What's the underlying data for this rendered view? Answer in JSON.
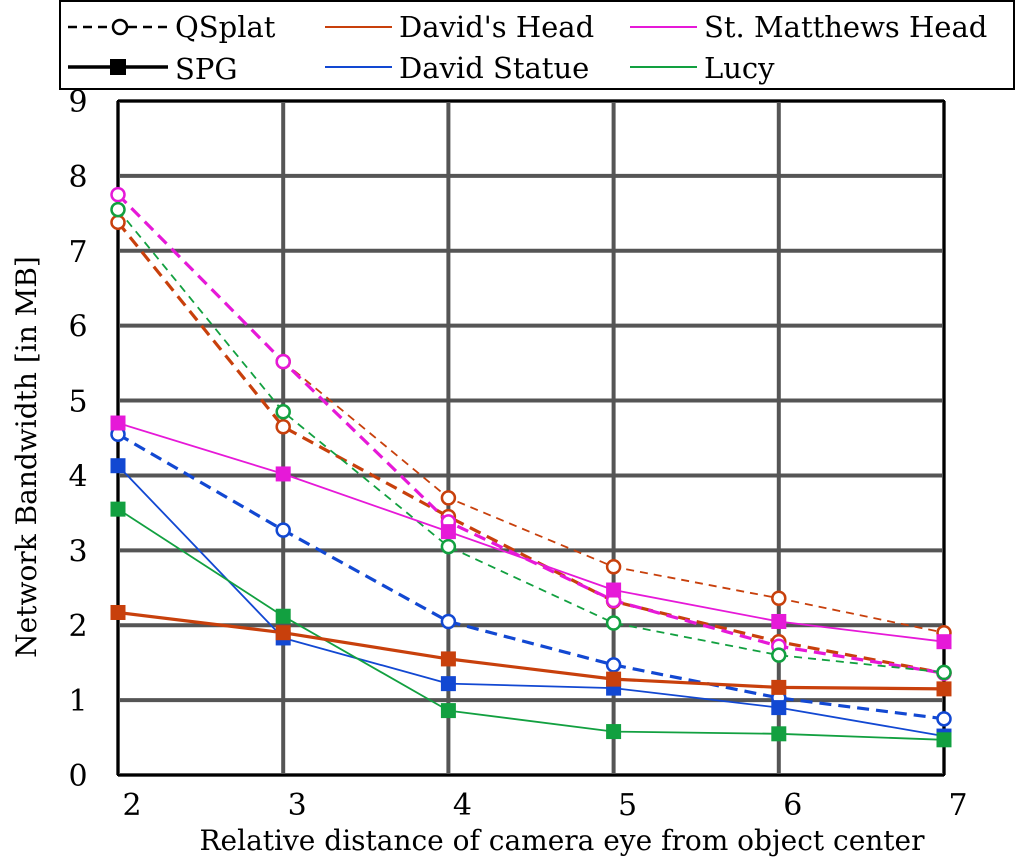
{
  "chart_data": {
    "type": "line",
    "title": "",
    "xlabel": "Relative distance of camera eye from object center",
    "ylabel": "Network Bandwidth [in MB]",
    "xlim": [
      2,
      7
    ],
    "ylim": [
      0,
      9
    ],
    "x_ticks": [
      2,
      3,
      4,
      5,
      6,
      7
    ],
    "y_ticks": [
      0,
      1,
      2,
      3,
      4,
      5,
      6,
      7,
      8,
      9
    ],
    "grid": true,
    "legend_position": "top",
    "legend": {
      "methods": [
        {
          "name": "QSplat",
          "line_style": "dashed",
          "marker": "open-circle"
        },
        {
          "name": "SPG",
          "line_style": "solid",
          "marker": "filled-square"
        }
      ],
      "models": [
        {
          "name": "David's Head",
          "color": "#c8400c"
        },
        {
          "name": "St. Matthews Head",
          "color": "#e619d8"
        },
        {
          "name": "David Statue",
          "color": "#1248d2"
        },
        {
          "name": "Lucy",
          "color": "#12a040"
        }
      ]
    },
    "series": [
      {
        "name": "QSplat",
        "model": "David's Head",
        "color": "#c8400c",
        "line_style": "dashed",
        "marker": "open-circle",
        "emphasis": "thin",
        "x": [
          3,
          4,
          5,
          6,
          7
        ],
        "y": [
          5.52,
          3.7,
          2.78,
          2.36,
          1.9
        ]
      },
      {
        "name": "QSplat",
        "model": "David's Head",
        "color": "#c8400c",
        "line_style": "dashed",
        "marker": "open-circle",
        "emphasis": "bold",
        "x": [
          2,
          3,
          4,
          5,
          6,
          7
        ],
        "y": [
          7.38,
          4.65,
          3.45,
          2.32,
          1.78,
          1.36
        ]
      },
      {
        "name": "QSplat",
        "model": "St. Matthews Head",
        "color": "#e619d8",
        "line_style": "dashed",
        "marker": "open-circle",
        "emphasis": "bold",
        "x": [
          2,
          3,
          4,
          5,
          6,
          7
        ],
        "y": [
          7.75,
          5.52,
          3.38,
          2.33,
          1.72,
          1.36
        ]
      },
      {
        "name": "QSplat",
        "model": "Lucy",
        "color": "#12a040",
        "line_style": "dashed",
        "marker": "open-circle",
        "emphasis": "thin",
        "x": [
          2,
          3,
          4,
          5,
          6,
          7
        ],
        "y": [
          7.55,
          4.85,
          3.05,
          2.03,
          1.6,
          1.37
        ]
      },
      {
        "name": "QSplat",
        "model": "David Statue",
        "color": "#1248d2",
        "line_style": "dashed",
        "marker": "open-circle",
        "emphasis": "bold",
        "x": [
          2,
          3,
          4,
          5,
          6,
          7
        ],
        "y": [
          4.55,
          3.27,
          2.05,
          1.47,
          1.03,
          0.75
        ]
      },
      {
        "name": "SPG",
        "model": "St. Matthews Head",
        "color": "#e619d8",
        "line_style": "solid",
        "marker": "filled-square",
        "emphasis": "thin",
        "x": [
          2,
          3,
          4,
          5,
          6,
          7
        ],
        "y": [
          4.7,
          4.02,
          3.25,
          2.47,
          2.05,
          1.78
        ]
      },
      {
        "name": "SPG",
        "model": "David Statue",
        "color": "#1248d2",
        "line_style": "solid",
        "marker": "filled-square",
        "emphasis": "thin",
        "x": [
          2,
          3,
          4,
          5,
          6,
          7
        ],
        "y": [
          4.13,
          1.83,
          1.22,
          1.16,
          0.9,
          0.52
        ]
      },
      {
        "name": "SPG",
        "model": "Lucy",
        "color": "#12a040",
        "line_style": "solid",
        "marker": "filled-square",
        "emphasis": "thin",
        "x": [
          2,
          3,
          4,
          5,
          6,
          7
        ],
        "y": [
          3.55,
          2.12,
          0.86,
          0.58,
          0.55,
          0.47
        ]
      },
      {
        "name": "SPG",
        "model": "David's Head",
        "color": "#c8400c",
        "line_style": "solid",
        "marker": "filled-square",
        "emphasis": "bold",
        "x": [
          2,
          3,
          4,
          5,
          6,
          7
        ],
        "y": [
          2.17,
          1.9,
          1.55,
          1.28,
          1.17,
          1.15
        ]
      }
    ]
  }
}
